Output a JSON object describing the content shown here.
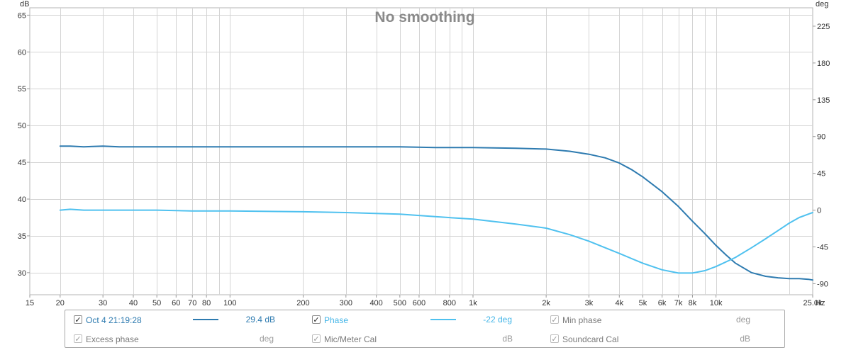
{
  "chart_data": {
    "type": "line",
    "title": "No smoothing",
    "x_unit": "Hz",
    "y_left_unit": "dB",
    "y_right_unit": "deg",
    "x_scale": "log",
    "xlim": [
      15,
      25000
    ],
    "ylim_left": [
      27,
      66
    ],
    "ylim_right": [
      -103.5,
      247.5
    ],
    "x_ticks": [
      {
        "v": 15,
        "label": "15"
      },
      {
        "v": 20,
        "label": "20"
      },
      {
        "v": 30,
        "label": "30"
      },
      {
        "v": 40,
        "label": "40"
      },
      {
        "v": 50,
        "label": "50"
      },
      {
        "v": 60,
        "label": "60"
      },
      {
        "v": 70,
        "label": "70"
      },
      {
        "v": 80,
        "label": "80"
      },
      {
        "v": 100,
        "label": "100"
      },
      {
        "v": 200,
        "label": "200"
      },
      {
        "v": 300,
        "label": "300"
      },
      {
        "v": 400,
        "label": "400"
      },
      {
        "v": 500,
        "label": "500"
      },
      {
        "v": 600,
        "label": "600"
      },
      {
        "v": 800,
        "label": "800"
      },
      {
        "v": 1000,
        "label": "1k"
      },
      {
        "v": 2000,
        "label": "2k"
      },
      {
        "v": 3000,
        "label": "3k"
      },
      {
        "v": 4000,
        "label": "4k"
      },
      {
        "v": 5000,
        "label": "5k"
      },
      {
        "v": 6000,
        "label": "6k"
      },
      {
        "v": 7000,
        "label": "7k"
      },
      {
        "v": 8000,
        "label": "8k"
      },
      {
        "v": 10000,
        "label": "10k"
      },
      {
        "v": 25000,
        "label": "25.0k"
      }
    ],
    "grid_x_minor": [
      90,
      700,
      900,
      9000,
      20000
    ],
    "y_left_ticks": [
      30,
      35,
      40,
      45,
      50,
      55,
      60,
      65
    ],
    "y_right_ticks": [
      -90,
      -45,
      0,
      45,
      90,
      135,
      180,
      225
    ],
    "grid": true,
    "legend_position": "bottom",
    "series": [
      {
        "name": "Oct 4 21:19:28",
        "axis": "left",
        "color": "#2e7bb0",
        "x": [
          20,
          22,
          25,
          30,
          35,
          40,
          50,
          70,
          100,
          200,
          300,
          500,
          700,
          1000,
          1500,
          2000,
          2500,
          3000,
          3500,
          4000,
          4500,
          5000,
          6000,
          7000,
          8000,
          9000,
          10000,
          11000,
          12000,
          14000,
          16000,
          18000,
          20000,
          22000,
          24000,
          25000
        ],
        "values": [
          47.2,
          47.2,
          47.1,
          47.2,
          47.1,
          47.1,
          47.1,
          47.1,
          47.1,
          47.1,
          47.1,
          47.1,
          47.0,
          47.0,
          46.9,
          46.8,
          46.5,
          46.1,
          45.6,
          44.9,
          44.0,
          43.0,
          41.0,
          39.0,
          37.0,
          35.3,
          33.7,
          32.4,
          31.3,
          30.0,
          29.5,
          29.3,
          29.2,
          29.2,
          29.1,
          29.0
        ]
      },
      {
        "name": "Phase",
        "axis": "right",
        "color": "#4fc1ef",
        "x": [
          20,
          22,
          25,
          30,
          40,
          50,
          70,
          100,
          200,
          300,
          500,
          700,
          1000,
          1500,
          2000,
          2500,
          3000,
          3500,
          4000,
          5000,
          6000,
          7000,
          8000,
          9000,
          10000,
          12000,
          14000,
          16000,
          18000,
          20000,
          22000,
          25000
        ],
        "values": [
          0,
          1,
          0,
          0,
          0,
          0,
          -1,
          -1,
          -2,
          -3,
          -5,
          -8,
          -11,
          -17,
          -22,
          -30,
          -38,
          -46,
          -53,
          -65,
          -73,
          -77,
          -77,
          -74,
          -69,
          -58,
          -46,
          -35,
          -25,
          -16,
          -9,
          -3
        ]
      }
    ]
  },
  "legend": {
    "row1": [
      {
        "checked": true,
        "label": "Oct 4 21:19:28",
        "value": "29.4 dB",
        "color": "#2e7bb0"
      },
      {
        "checked": true,
        "label": "Phase",
        "value": "-22 deg",
        "color": "#4fc1ef"
      },
      {
        "checked": true,
        "label": "Min phase",
        "value": "deg"
      }
    ],
    "row2": [
      {
        "checked": true,
        "label": "Excess phase",
        "value": "deg"
      },
      {
        "checked": true,
        "label": "Mic/Meter Cal",
        "value": "dB"
      },
      {
        "checked": true,
        "label": "Soundcard Cal",
        "value": "dB"
      }
    ],
    "check_glyph": "✓"
  }
}
